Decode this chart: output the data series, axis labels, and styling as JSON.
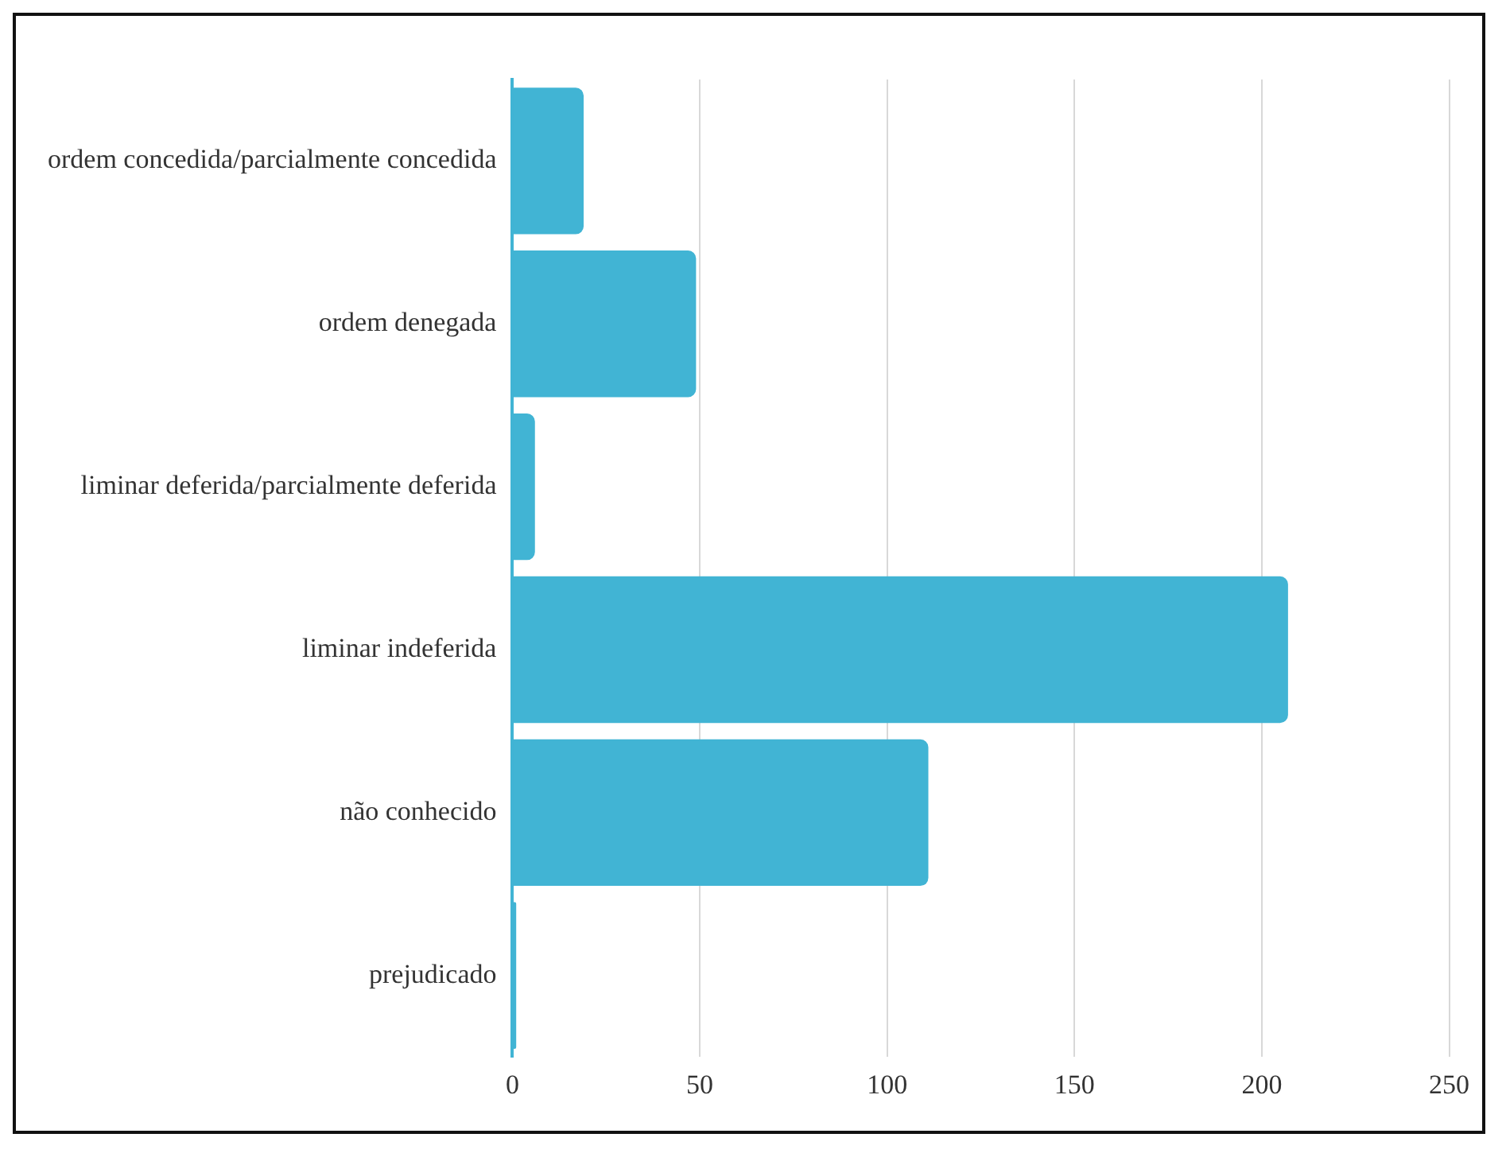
{
  "chart_data": {
    "type": "bar",
    "orientation": "horizontal",
    "categories": [
      "ordem concedida/parcialmente concedida",
      "ordem denegada",
      "liminar deferida/parcialmente deferida",
      "liminar indeferida",
      "não conhecido",
      "prejudicado"
    ],
    "values": [
      19,
      49,
      6,
      207,
      111,
      1
    ],
    "color": "#41b4d4",
    "xlim": [
      0,
      250
    ],
    "xticks": [
      0,
      50,
      100,
      150,
      200,
      250
    ],
    "grid": "x",
    "legend": false
  }
}
